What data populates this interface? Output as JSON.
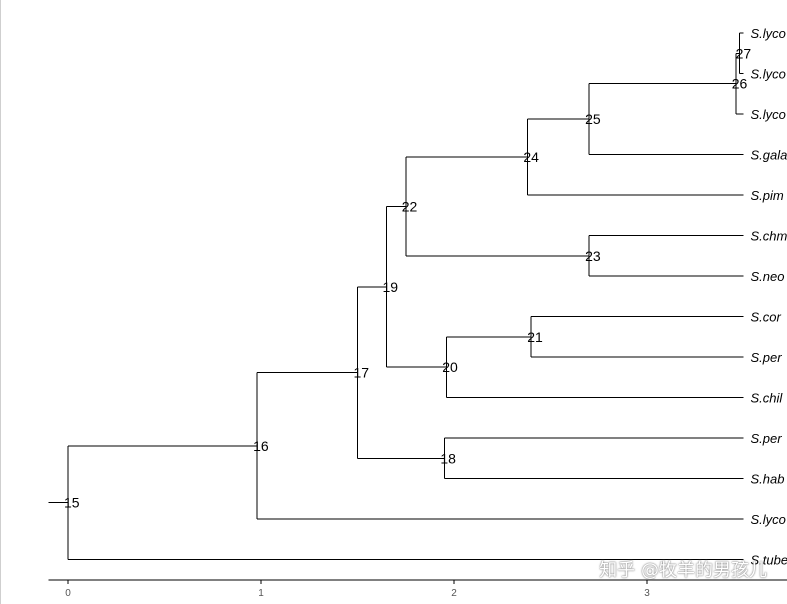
{
  "tree": {
    "tips": [
      "S.lyco",
      "S.lyco",
      "S.lyco",
      "S.gala",
      "S.pim",
      "S.chm",
      "S.neo",
      "S.cor",
      "S.per",
      "S.chil",
      "S.per",
      "S.hab",
      "S.lyco",
      "S.tube"
    ],
    "nodes": [
      {
        "id": "15",
        "depth": 0.0,
        "children": [
          "16",
          "t14"
        ]
      },
      {
        "id": "16",
        "depth": 0.98,
        "children": [
          "17",
          "t13"
        ]
      },
      {
        "id": "17",
        "depth": 1.5,
        "children": [
          "19",
          "18"
        ]
      },
      {
        "id": "18",
        "depth": 1.95,
        "children": [
          "t11",
          "t12"
        ]
      },
      {
        "id": "19",
        "depth": 1.65,
        "children": [
          "22",
          "20"
        ]
      },
      {
        "id": "20",
        "depth": 1.96,
        "children": [
          "21",
          "t10"
        ]
      },
      {
        "id": "21",
        "depth": 2.4,
        "children": [
          "t8",
          "t9"
        ]
      },
      {
        "id": "22",
        "depth": 1.75,
        "children": [
          "24",
          "23"
        ]
      },
      {
        "id": "23",
        "depth": 2.7,
        "children": [
          "t6",
          "t7"
        ]
      },
      {
        "id": "24",
        "depth": 2.38,
        "children": [
          "25",
          "t5"
        ]
      },
      {
        "id": "25",
        "depth": 2.7,
        "children": [
          "26",
          "t4"
        ]
      },
      {
        "id": "26",
        "depth": 3.46,
        "children": [
          "27",
          "t3"
        ]
      },
      {
        "id": "27",
        "depth": 3.48,
        "children": [
          "t1",
          "t2"
        ]
      }
    ],
    "tip_depth": 3.5,
    "root_stub": 0.1
  },
  "axis": {
    "ticks": [
      0,
      1,
      2,
      3
    ],
    "tick_labels": [
      "0",
      "1",
      "2",
      "3"
    ],
    "domain": [
      -0.1,
      3.7
    ]
  },
  "watermark": "知乎 @牧羊的男孩儿"
}
